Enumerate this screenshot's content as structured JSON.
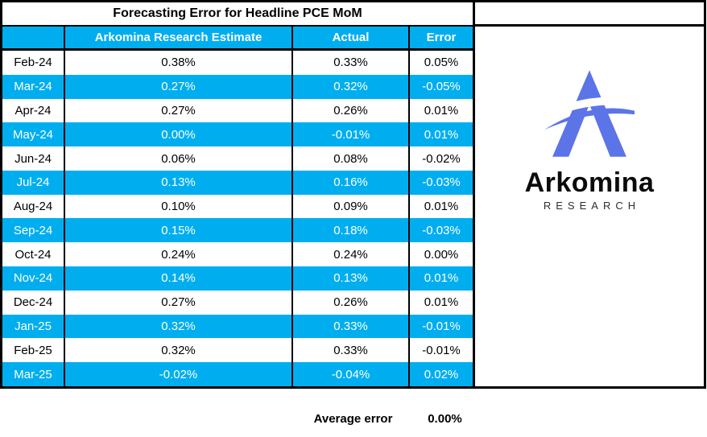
{
  "chart_data": {
    "type": "table",
    "title": "Forecasting Error for Headline PCE MoM",
    "columns": [
      "",
      "Arkomina Research Estimate",
      "Actual",
      "Error"
    ],
    "rows": [
      {
        "month": "Feb-24",
        "estimate": "0.38%",
        "actual": "0.33%",
        "error": "0.05%",
        "highlighted": false
      },
      {
        "month": "Mar-24",
        "estimate": "0.27%",
        "actual": "0.32%",
        "error": "-0.05%",
        "highlighted": true
      },
      {
        "month": "Apr-24",
        "estimate": "0.27%",
        "actual": "0.26%",
        "error": "0.01%",
        "highlighted": false
      },
      {
        "month": "May-24",
        "estimate": "0.00%",
        "actual": "-0.01%",
        "error": "0.01%",
        "highlighted": true
      },
      {
        "month": "Jun-24",
        "estimate": "0.06%",
        "actual": "0.08%",
        "error": "-0.02%",
        "highlighted": false
      },
      {
        "month": "Jul-24",
        "estimate": "0.13%",
        "actual": "0.16%",
        "error": "-0.03%",
        "highlighted": true
      },
      {
        "month": "Aug-24",
        "estimate": "0.10%",
        "actual": "0.09%",
        "error": "0.01%",
        "highlighted": false
      },
      {
        "month": "Sep-24",
        "estimate": "0.15%",
        "actual": "0.18%",
        "error": "-0.03%",
        "highlighted": true
      },
      {
        "month": "Oct-24",
        "estimate": "0.24%",
        "actual": "0.24%",
        "error": "0.00%",
        "highlighted": false
      },
      {
        "month": "Nov-24",
        "estimate": "0.14%",
        "actual": "0.13%",
        "error": "0.01%",
        "highlighted": true
      },
      {
        "month": "Dec-24",
        "estimate": "0.27%",
        "actual": "0.26%",
        "error": "0.01%",
        "highlighted": false
      },
      {
        "month": "Jan-25",
        "estimate": "0.32%",
        "actual": "0.33%",
        "error": "-0.01%",
        "highlighted": true
      },
      {
        "month": "Feb-25",
        "estimate": "0.32%",
        "actual": "0.33%",
        "error": "-0.01%",
        "highlighted": false
      },
      {
        "month": "Mar-25",
        "estimate": "-0.02%",
        "actual": "-0.04%",
        "error": "0.02%",
        "highlighted": true
      }
    ],
    "footer": {
      "label": "Average error",
      "value": "0.00%"
    },
    "layout": {
      "highlight_style": "alternating rows filled cyan with white text",
      "grid": "black column borders, thick black outer border"
    }
  },
  "logo": {
    "name": "Arkomina",
    "subtitle": "RESEARCH",
    "mark": "arkomina-a-swoosh"
  },
  "colors": {
    "accent_cyan": "#00AEEF",
    "logo_blue": "#5B74E8",
    "border_black": "#000000",
    "header_text": "#FFFFFF"
  }
}
